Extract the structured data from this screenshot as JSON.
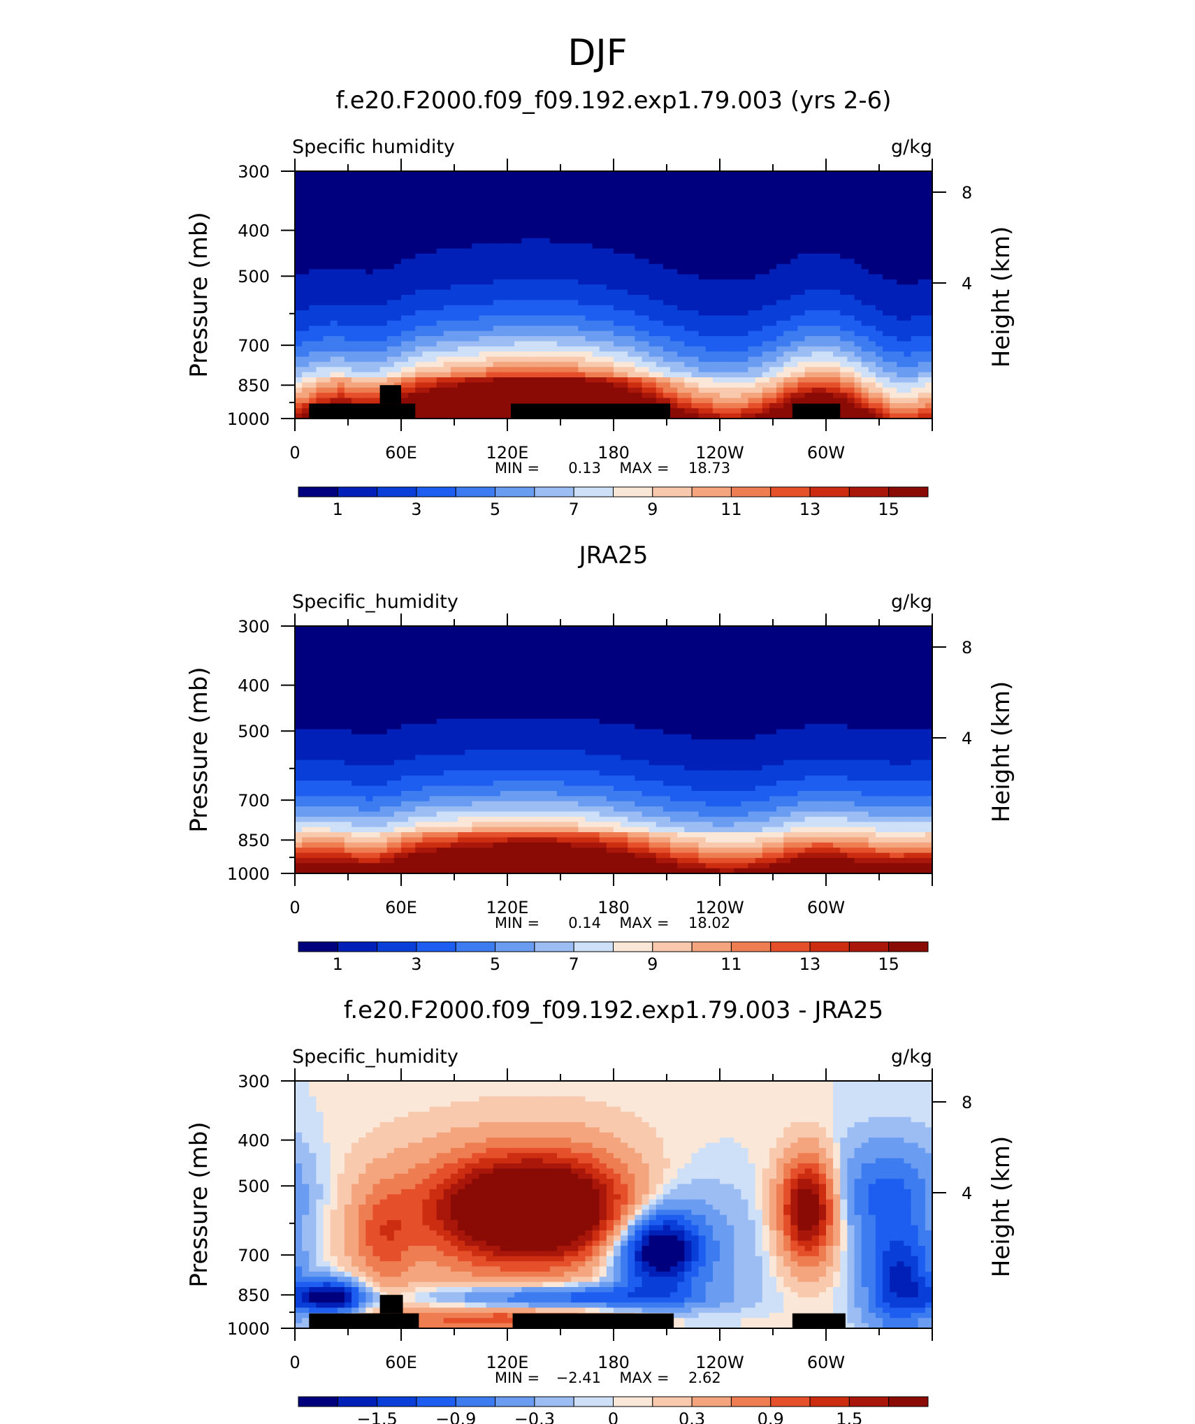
{
  "figure": {
    "title": "DJF",
    "colors": {
      "land": "#000000",
      "axis": "#000000",
      "background": "#ffffff"
    }
  },
  "chart_data": [
    {
      "type": "heatmap",
      "title": "f.e20.F2000.f09_f09.192.exp1.79.003 (yrs 2-6)",
      "left_label": "Specific humidity",
      "units": "g/kg",
      "ylabel": "Pressure (mb)",
      "y2label": "Height (km)",
      "x_ticks": [
        "0",
        "60E",
        "120E",
        "180",
        "120W",
        "60W"
      ],
      "y_ticks": [
        "300",
        "400",
        "500",
        "700",
        "850",
        "1000"
      ],
      "y2_ticks": [
        "8",
        "4"
      ],
      "stats": {
        "min_label": "MIN =",
        "min": "0.13",
        "max_label": "MAX =",
        "max": "18.73"
      },
      "colorbar_labels": [
        "1",
        "3",
        "5",
        "7",
        "9",
        "11",
        "13",
        "15"
      ],
      "colorbar_colors": [
        "#00007f",
        "#0020b8",
        "#0a3ed8",
        "#1d5ef0",
        "#3d7cf0",
        "#6a9cf2",
        "#9cbdf4",
        "#cde0f8",
        "#fbe7d8",
        "#f8c9ad",
        "#f4a57e",
        "#ee7d52",
        "#e5502b",
        "#cc2d10",
        "#a8170a",
        "#8a0b05"
      ],
      "min": 0.13,
      "max": 18.73,
      "field": "model",
      "land_blocks": [
        {
          "lon": [
            8,
            68
          ],
          "p": [
            930,
            1000
          ]
        },
        {
          "lon": [
            48,
            60
          ],
          "p": [
            850,
            930
          ]
        },
        {
          "lon": [
            122,
            212
          ],
          "p": [
            930,
            1000
          ]
        },
        {
          "lon": [
            281,
            308
          ],
          "p": [
            930,
            1000
          ]
        }
      ]
    },
    {
      "type": "heatmap",
      "title": "JRA25",
      "left_label": "Specific_humidity",
      "units": "g/kg",
      "ylabel": "Pressure (mb)",
      "y2label": "Height (km)",
      "x_ticks": [
        "0",
        "60E",
        "120E",
        "180",
        "120W",
        "60W"
      ],
      "y_ticks": [
        "300",
        "400",
        "500",
        "700",
        "850",
        "1000"
      ],
      "y2_ticks": [
        "8",
        "4"
      ],
      "stats": {
        "min_label": "MIN =",
        "min": "0.14",
        "max_label": "MAX =",
        "max": "18.02"
      },
      "colorbar_labels": [
        "1",
        "3",
        "5",
        "7",
        "9",
        "11",
        "13",
        "15"
      ],
      "colorbar_colors": [
        "#00007f",
        "#0020b8",
        "#0a3ed8",
        "#1d5ef0",
        "#3d7cf0",
        "#6a9cf2",
        "#9cbdf4",
        "#cde0f8",
        "#fbe7d8",
        "#f8c9ad",
        "#f4a57e",
        "#ee7d52",
        "#e5502b",
        "#cc2d10",
        "#a8170a",
        "#8a0b05"
      ],
      "min": 0.14,
      "max": 18.02,
      "field": "obs",
      "land_blocks": []
    },
    {
      "type": "heatmap",
      "title": "f.e20.F2000.f09_f09.192.exp1.79.003 - JRA25",
      "left_label": "Specific_humidity",
      "units": "g/kg",
      "ylabel": "Pressure (mb)",
      "y2label": "Height (km)",
      "x_ticks": [
        "0",
        "60E",
        "120E",
        "180",
        "120W",
        "60W"
      ],
      "y_ticks": [
        "300",
        "400",
        "500",
        "700",
        "850",
        "1000"
      ],
      "y2_ticks": [
        "8",
        "4"
      ],
      "stats": {
        "min_label": "MIN =",
        "min": "−2.41",
        "max_label": "MAX =",
        "max": "2.62"
      },
      "colorbar_labels": [
        "−1.5",
        "−0.9",
        "−0.3",
        "0",
        "0.3",
        "0.9",
        "1.5"
      ],
      "colorbar_colors": [
        "#00007f",
        "#0020b8",
        "#0a3ed8",
        "#1d5ef0",
        "#3d7cf0",
        "#6a9cf2",
        "#9cbdf4",
        "#cde0f8",
        "#fbe7d8",
        "#f8c9ad",
        "#f4a57e",
        "#ee7d52",
        "#e5502b",
        "#cc2d10",
        "#a8170a",
        "#8a0b05"
      ],
      "min": -2.41,
      "max": 2.62,
      "field": "diff",
      "land_blocks": [
        {
          "lon": [
            8,
            70
          ],
          "p": [
            930,
            1000
          ]
        },
        {
          "lon": [
            48,
            61
          ],
          "p": [
            850,
            930
          ]
        },
        {
          "lon": [
            123,
            214
          ],
          "p": [
            930,
            1000
          ]
        },
        {
          "lon": [
            281,
            311
          ],
          "p": [
            930,
            1000
          ]
        }
      ]
    }
  ]
}
